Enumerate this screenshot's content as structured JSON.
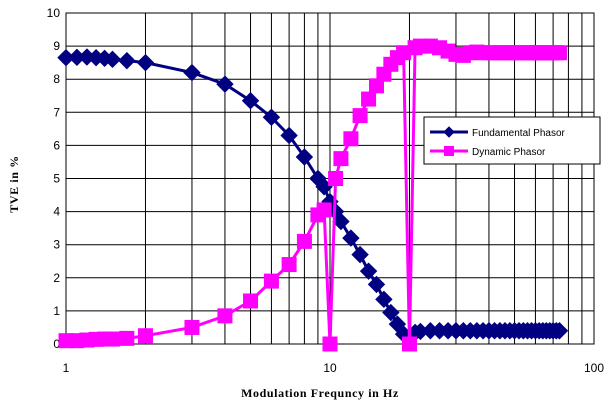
{
  "chart_data": {
    "type": "line",
    "title": "",
    "xlabel": "Modulation Frequncy in Hz",
    "ylabel": "TVE in %",
    "xscale": "log",
    "xlim": [
      1,
      100
    ],
    "ylim": [
      0,
      10
    ],
    "xticks": [
      "1",
      "10",
      "100"
    ],
    "yticks": [
      "0",
      "1",
      "2",
      "3",
      "4",
      "5",
      "6",
      "7",
      "8",
      "9",
      "10"
    ],
    "grid": true,
    "legend": "right",
    "series": [
      {
        "name": "Fundamental Phasor",
        "color": "#000080",
        "marker": "diamond",
        "points": [
          [
            1.0,
            8.65
          ],
          [
            1.1,
            8.66
          ],
          [
            1.2,
            8.67
          ],
          [
            1.3,
            8.65
          ],
          [
            1.4,
            8.63
          ],
          [
            1.5,
            8.6
          ],
          [
            1.7,
            8.56
          ],
          [
            2.0,
            8.5
          ],
          [
            3.0,
            8.2
          ],
          [
            4.0,
            7.85
          ],
          [
            5.0,
            7.35
          ],
          [
            6.0,
            6.85
          ],
          [
            7.0,
            6.3
          ],
          [
            8.0,
            5.65
          ],
          [
            9.0,
            5.0
          ],
          [
            9.5,
            4.75
          ],
          [
            10.0,
            4.3
          ],
          [
            10.5,
            4.0
          ],
          [
            11.0,
            3.7
          ],
          [
            12.0,
            3.2
          ],
          [
            13.0,
            2.7
          ],
          [
            14.0,
            2.2
          ],
          [
            15.0,
            1.8
          ],
          [
            16.0,
            1.35
          ],
          [
            17.0,
            0.95
          ],
          [
            18.0,
            0.6
          ],
          [
            19.0,
            0.3
          ],
          [
            20.0,
            0.2
          ],
          [
            21.0,
            0.35
          ],
          [
            22.0,
            0.38
          ],
          [
            24.0,
            0.4
          ],
          [
            26.0,
            0.4
          ],
          [
            28.0,
            0.4
          ],
          [
            30.0,
            0.4
          ],
          [
            32.0,
            0.4
          ],
          [
            34.0,
            0.4
          ],
          [
            36.0,
            0.4
          ],
          [
            38.0,
            0.4
          ],
          [
            40.0,
            0.4
          ],
          [
            42.0,
            0.4
          ],
          [
            44.0,
            0.4
          ],
          [
            46.0,
            0.4
          ],
          [
            48.0,
            0.4
          ],
          [
            50.0,
            0.4
          ],
          [
            52.0,
            0.4
          ],
          [
            54.0,
            0.4
          ],
          [
            56.0,
            0.4
          ],
          [
            58.0,
            0.4
          ],
          [
            60.0,
            0.4
          ],
          [
            62.0,
            0.4
          ],
          [
            64.0,
            0.4
          ],
          [
            66.0,
            0.4
          ],
          [
            68.0,
            0.4
          ],
          [
            70.0,
            0.4
          ],
          [
            72.0,
            0.4
          ],
          [
            74.0,
            0.4
          ]
        ]
      },
      {
        "name": "Dynamic Phasor",
        "color": "#FF00FF",
        "marker": "square",
        "points": [
          [
            1.0,
            0.1
          ],
          [
            1.1,
            0.1
          ],
          [
            1.2,
            0.12
          ],
          [
            1.3,
            0.14
          ],
          [
            1.4,
            0.15
          ],
          [
            1.5,
            0.15
          ],
          [
            1.7,
            0.17
          ],
          [
            2.0,
            0.25
          ],
          [
            3.0,
            0.5
          ],
          [
            4.0,
            0.85
          ],
          [
            5.0,
            1.3
          ],
          [
            6.0,
            1.9
          ],
          [
            7.0,
            2.4
          ],
          [
            8.0,
            3.1
          ],
          [
            9.0,
            3.9
          ],
          [
            9.5,
            4.05
          ],
          [
            10.0,
            0.0
          ],
          [
            10.5,
            5.0
          ],
          [
            11.0,
            5.6
          ],
          [
            12.0,
            6.2
          ],
          [
            13.0,
            6.9
          ],
          [
            14.0,
            7.4
          ],
          [
            15.0,
            7.8
          ],
          [
            16.0,
            8.15
          ],
          [
            17.0,
            8.45
          ],
          [
            18.0,
            8.65
          ],
          [
            19.0,
            8.8
          ],
          [
            20.0,
            0.0
          ],
          [
            21.0,
            8.95
          ],
          [
            22.0,
            9.0
          ],
          [
            24.0,
            9.0
          ],
          [
            26.0,
            8.95
          ],
          [
            28.0,
            8.85
          ],
          [
            30.0,
            8.75
          ],
          [
            32.0,
            8.72
          ],
          [
            34.0,
            8.8
          ],
          [
            36.0,
            8.82
          ],
          [
            38.0,
            8.8
          ],
          [
            40.0,
            8.8
          ],
          [
            42.0,
            8.8
          ],
          [
            44.0,
            8.8
          ],
          [
            46.0,
            8.8
          ],
          [
            48.0,
            8.8
          ],
          [
            50.0,
            8.8
          ],
          [
            52.0,
            8.8
          ],
          [
            54.0,
            8.8
          ],
          [
            56.0,
            8.8
          ],
          [
            58.0,
            8.8
          ],
          [
            60.0,
            8.8
          ],
          [
            62.0,
            8.8
          ],
          [
            64.0,
            8.8
          ],
          [
            66.0,
            8.8
          ],
          [
            68.0,
            8.8
          ],
          [
            70.0,
            8.8
          ],
          [
            72.0,
            8.8
          ],
          [
            74.0,
            8.8
          ]
        ]
      }
    ]
  }
}
